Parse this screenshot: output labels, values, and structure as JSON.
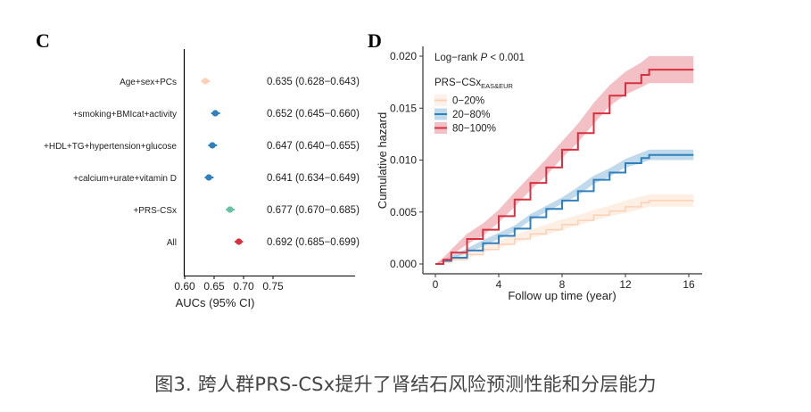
{
  "caption": "图3. 跨人群PRS-CSx提升了肾结石风险预测性能和分层能力",
  "chart_data": [
    {
      "panel": "C",
      "type": "scatter",
      "subtype": "forest",
      "title": "",
      "xlabel": "AUCs (95% CI)",
      "ylabel": "",
      "xlim": [
        0.6,
        0.75
      ],
      "xticks": [
        "0.60",
        "0.65",
        "0.70",
        "0.75"
      ],
      "grid": false,
      "categories": [
        "Age+sex+PCs",
        "+smoking+BMIcat+activity",
        "+HDL+TG+hypertension+glucose",
        "+calcium+urate+vitamin D",
        "+PRS-CSx",
        "All"
      ],
      "auc": [
        0.635,
        0.652,
        0.647,
        0.641,
        0.677,
        0.692
      ],
      "ci_low": [
        0.628,
        0.645,
        0.64,
        0.634,
        0.67,
        0.685
      ],
      "ci_high": [
        0.643,
        0.66,
        0.655,
        0.649,
        0.685,
        0.699
      ],
      "labels": [
        "0.635 (0.628−0.643)",
        "0.652 (0.645−0.660)",
        "0.647 (0.640−0.655)",
        "0.641 (0.634−0.649)",
        "0.677 (0.670−0.685)",
        "0.692 (0.685−0.699)"
      ],
      "colors": [
        "#fdd0b5",
        "#2f80bd",
        "#2f80bd",
        "#2f80bd",
        "#66c2a0",
        "#d7303f"
      ]
    },
    {
      "panel": "D",
      "type": "line",
      "subtype": "cumulative-hazard",
      "title": "",
      "annotation": "Log−rank P < 0.001",
      "xlabel": "Follow up time (year)",
      "ylabel": "Cumulative hazard",
      "xlim": [
        0,
        16.3
      ],
      "ylim": [
        0,
        0.0205
      ],
      "xticks": [
        0,
        4,
        8,
        12,
        16
      ],
      "yticks": [
        "0.000",
        "0.005",
        "0.010",
        "0.015",
        "0.020"
      ],
      "grid": false,
      "legend_title": "PRS−CSx",
      "legend_title_sub": "EAS&EUR",
      "legend_position": "top-left",
      "x": [
        0,
        0.5,
        1,
        2,
        3,
        4,
        5,
        6,
        7,
        8,
        9,
        10,
        11,
        12,
        13,
        13.5,
        14,
        15,
        16.3
      ],
      "series": [
        {
          "name": "0−20%",
          "color": "#fdd0b5",
          "values": [
            0,
            0.0002,
            0.0004,
            0.0009,
            0.0014,
            0.0019,
            0.0024,
            0.0029,
            0.0033,
            0.0038,
            0.0042,
            0.0047,
            0.0051,
            0.0055,
            0.0059,
            0.0061,
            0.0061,
            0.0061,
            0.0061
          ],
          "ci_width": [
            0,
            0.0001,
            0.0002,
            0.0003,
            0.0003,
            0.0004,
            0.0004,
            0.0004,
            0.0005,
            0.0005,
            0.0005,
            0.0005,
            0.0005,
            0.0006,
            0.0006,
            0.0006,
            0.0006,
            0.0006,
            0.0006
          ]
        },
        {
          "name": "20−80%",
          "color": "#2f80bd",
          "values": [
            0,
            0.0003,
            0.0006,
            0.0013,
            0.002,
            0.0027,
            0.0034,
            0.0045,
            0.0053,
            0.0061,
            0.007,
            0.0081,
            0.0088,
            0.0097,
            0.0102,
            0.0105,
            0.0105,
            0.0105,
            0.0105
          ],
          "ci_width": [
            0,
            0.0001,
            0.0002,
            0.0002,
            0.0003,
            0.0003,
            0.0003,
            0.0003,
            0.0003,
            0.0003,
            0.0004,
            0.0004,
            0.0004,
            0.0004,
            0.0005,
            0.0005,
            0.0005,
            0.0005,
            0.0005
          ]
        },
        {
          "name": "80−100%",
          "color": "#d7303f",
          "values": [
            0,
            0.0004,
            0.0011,
            0.0024,
            0.0033,
            0.0046,
            0.0062,
            0.0078,
            0.0093,
            0.011,
            0.0126,
            0.0145,
            0.0162,
            0.0174,
            0.0182,
            0.0187,
            0.0187,
            0.0187,
            0.0187
          ],
          "ci_width": [
            0,
            0.0002,
            0.0003,
            0.0005,
            0.0006,
            0.0006,
            0.0007,
            0.0007,
            0.0008,
            0.0008,
            0.0009,
            0.001,
            0.001,
            0.0011,
            0.0012,
            0.0013,
            0.0013,
            0.0013,
            0.0013
          ]
        }
      ]
    }
  ]
}
